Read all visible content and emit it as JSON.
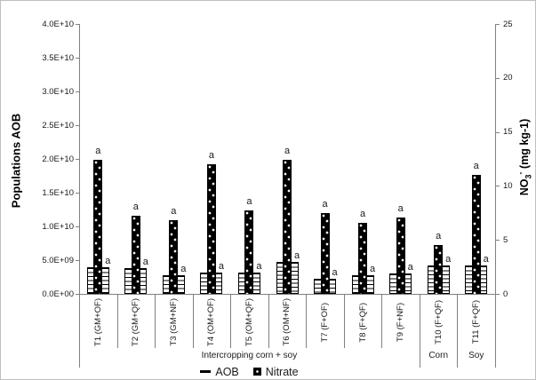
{
  "chart_data": {
    "type": "bar",
    "categories": [
      "T1 (GM+OF)",
      "T2 (GM+QF)",
      "T3 (GM+NF)",
      "T4 (OM+OF)",
      "T5 (OM+QF)",
      "T6 (OM+NF)",
      "T7 (F+OF)",
      "T8 (F+QF)",
      "T9 (F+NF)",
      "T10 (F+QF)",
      "T11 (F+QF)"
    ],
    "series": [
      {
        "name": "AOB",
        "axis": "left",
        "values": [
          3900000000,
          3800000000,
          2700000000,
          3200000000,
          3200000000,
          4700000000,
          2200000000,
          2700000000,
          3000000000,
          4200000000,
          4200000000
        ],
        "point_labels": [
          "a",
          "a",
          "a",
          "a",
          "a",
          "a",
          "a",
          "a",
          "a",
          "a",
          "a"
        ]
      },
      {
        "name": "Nitrate",
        "axis": "right",
        "values": [
          12.4,
          7.2,
          6.8,
          12.0,
          7.7,
          12.4,
          7.5,
          6.6,
          7.1,
          4.5,
          11.0
        ],
        "point_labels": [
          "a",
          "a",
          "a",
          "a",
          "a",
          "a",
          "a",
          "a",
          "a",
          "a",
          "a"
        ]
      }
    ],
    "left_axis": {
      "title": "Populations AOB",
      "ticks": [
        "0.0E+00",
        "5.0E+09",
        "1.0E+10",
        "1.5E+10",
        "2.0E+10",
        "2.5E+10",
        "3.0E+10",
        "3.5E+10",
        "4.0E+10"
      ],
      "ylim": [
        0,
        40000000000
      ]
    },
    "right_axis": {
      "title_parts": {
        "base": "NO",
        "sub": "3",
        "sup": "-",
        "rest": " (mg kg-1)"
      },
      "ticks": [
        "0",
        "5",
        "10",
        "15",
        "20",
        "25"
      ],
      "ylim": [
        0,
        25
      ]
    },
    "groups": [
      {
        "label": "Intercropping corn + soy",
        "span": 9
      },
      {
        "label": "Corn",
        "span": 1
      },
      {
        "label": "Soy",
        "span": 1
      }
    ],
    "legend": [
      {
        "label": "AOB",
        "marker": "dash"
      },
      {
        "label": "Nitrate",
        "marker": "dotted-square"
      }
    ],
    "grid": false,
    "legend_position": "bottom-center"
  },
  "colors": {
    "nitrate_bar": "#000000",
    "aob_stripe": "#000000",
    "axis_line": "#808080",
    "text": "#1a1a1a"
  }
}
